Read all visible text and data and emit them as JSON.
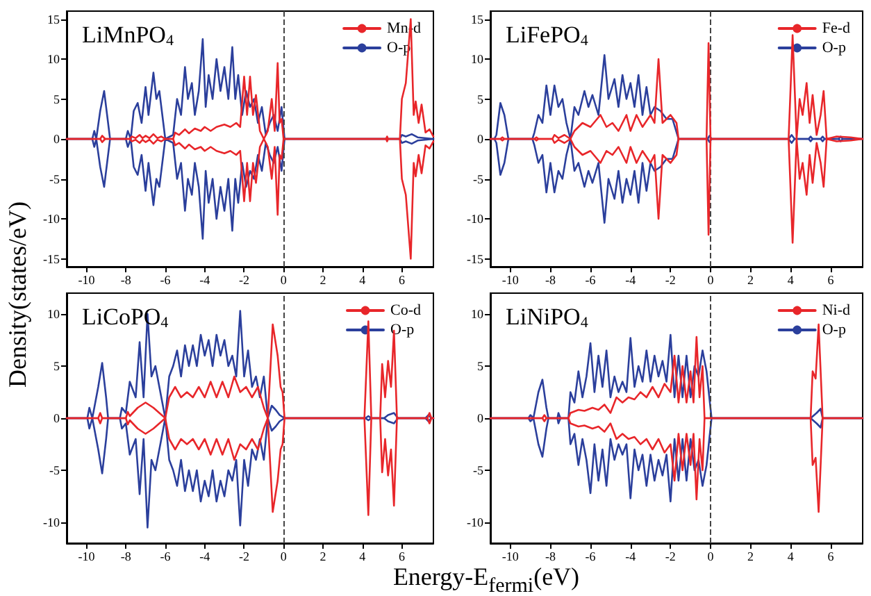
{
  "chart_data": [
    {
      "type": "line",
      "title": "LiMnPO$_{4}$",
      "ylabel": "Density(states/eV)",
      "xlim": [
        -11,
        7.6
      ],
      "xticks": [
        -10,
        -8,
        -6,
        -4,
        -2,
        0,
        2,
        4,
        6
      ],
      "ylim": [
        -16,
        16
      ],
      "yticks": [
        -15,
        -10,
        -5,
        0,
        5,
        10,
        15
      ],
      "grid": false,
      "legend": "top right",
      "marker": "none",
      "line_style": "solid",
      "ref_lines": [
        {
          "axis": "x",
          "value": 0,
          "line_style": "dashed"
        }
      ],
      "series": [
        {
          "name": "Mn-d",
          "color": "#e8262a",
          "x": [
            -11,
            -9.3,
            -9.2,
            -9.05,
            -7.8,
            -7.7,
            -7.5,
            -7.3,
            -7.15,
            -7.0,
            -6.8,
            -6.6,
            -6.4,
            -6.2,
            -6.0,
            -5.6,
            -5.5,
            -5.3,
            -5.0,
            -4.8,
            -4.5,
            -4.2,
            -4.0,
            -3.7,
            -3.4,
            -3.0,
            -2.7,
            -2.4,
            -2.2,
            -2.0,
            -1.85,
            -1.7,
            -1.55,
            -1.4,
            -1.2,
            -1.0,
            -0.8,
            -0.6,
            -0.45,
            -0.3,
            -0.2,
            -0.1,
            0,
            5.2,
            5.25,
            5.3,
            5.9,
            6.0,
            6.2,
            6.45,
            6.6,
            6.7,
            6.85,
            7.0,
            7.2,
            7.4,
            7.6
          ],
          "values": [
            0,
            0,
            0.4,
            0,
            0,
            0.3,
            0.1,
            0.5,
            0.1,
            0.4,
            0.1,
            0.6,
            0.1,
            0.3,
            0,
            0,
            0.8,
            0.5,
            1.2,
            0.7,
            1.3,
            1,
            1.5,
            1,
            1.5,
            1.8,
            1.5,
            2,
            1.5,
            7.8,
            3,
            7.8,
            3,
            5.5,
            1,
            0,
            1,
            5,
            1,
            9.5,
            2,
            2.5,
            0,
            0,
            0.3,
            0,
            0,
            5,
            7,
            15,
            3,
            4.7,
            2,
            4.3,
            0.8,
            1.2,
            0.3
          ]
        },
        {
          "color": "#e8262a",
          "x": [
            -11,
            -9.3,
            -9.2,
            -9.05,
            -7.8,
            -7.7,
            -7.5,
            -7.3,
            -7.15,
            -7.0,
            -6.8,
            -6.6,
            -6.4,
            -6.2,
            -6.0,
            -5.6,
            -5.5,
            -5.3,
            -5.0,
            -4.8,
            -4.5,
            -4.2,
            -4.0,
            -3.7,
            -3.4,
            -3.0,
            -2.7,
            -2.4,
            -2.2,
            -2.0,
            -1.85,
            -1.7,
            -1.55,
            -1.4,
            -1.2,
            -1.0,
            -0.8,
            -0.6,
            -0.45,
            -0.3,
            -0.2,
            -0.1,
            0,
            5.2,
            5.25,
            5.3,
            5.9,
            6.0,
            6.2,
            6.45,
            6.6,
            6.7,
            6.85,
            7.0,
            7.2,
            7.4,
            7.6
          ],
          "values": [
            0,
            0,
            -0.4,
            0,
            0,
            -0.3,
            -0.1,
            -0.5,
            -0.1,
            -0.4,
            -0.1,
            -0.6,
            -0.1,
            -0.3,
            0,
            0,
            -0.8,
            -0.5,
            -1.2,
            -0.7,
            -1.3,
            -1,
            -1.5,
            -1,
            -1.5,
            -1.8,
            -1.5,
            -2,
            -1.5,
            -7.8,
            -3,
            -7.8,
            -3,
            -5.5,
            -1,
            0,
            -1,
            -5,
            -1,
            -9.5,
            -2,
            -2.5,
            0,
            0,
            -0.3,
            0,
            0,
            -5,
            -7,
            -15,
            -3,
            -4.7,
            -2,
            -4.3,
            -0.8,
            -1.2,
            -0.3
          ]
        },
        {
          "name": "O-p",
          "color": "#2b3f9c",
          "x": [
            -11,
            -9.7,
            -9.6,
            -9.5,
            -9.3,
            -9.1,
            -8.95,
            -8.8,
            -8.0,
            -7.9,
            -7.75,
            -7.6,
            -7.4,
            -7.2,
            -7.0,
            -6.85,
            -6.6,
            -6.45,
            -6.3,
            -6.1,
            -6.0,
            -5.6,
            -5.4,
            -5.2,
            -5.0,
            -4.85,
            -4.65,
            -4.5,
            -4.3,
            -4.1,
            -3.95,
            -3.8,
            -3.6,
            -3.4,
            -3.2,
            -3.0,
            -2.8,
            -2.6,
            -2.45,
            -2.3,
            -2.1,
            -1.9,
            -1.7,
            -1.5,
            -1.3,
            -1.1,
            -0.9,
            -0.7,
            -0.5,
            -0.3,
            -0.1,
            0.05,
            5.9,
            6.0,
            6.2,
            6.5,
            6.8,
            7.6
          ],
          "values": [
            0,
            0,
            1,
            0,
            3.5,
            6,
            3,
            0,
            0,
            1,
            0,
            3.5,
            4.5,
            2,
            6.5,
            3,
            8.3,
            5,
            6,
            2,
            0,
            0.5,
            5,
            3,
            9,
            5,
            7,
            3,
            6,
            12.5,
            4,
            8,
            5,
            10,
            6,
            9,
            5,
            11.5,
            5,
            8,
            3,
            6,
            4,
            5,
            2,
            4,
            0.5,
            2,
            3,
            1,
            4,
            0,
            0,
            0.5,
            0.3,
            0.6,
            0.2,
            0
          ]
        },
        {
          "color": "#2b3f9c",
          "x": [
            -11,
            -9.7,
            -9.6,
            -9.5,
            -9.3,
            -9.1,
            -8.95,
            -8.8,
            -8.0,
            -7.9,
            -7.75,
            -7.6,
            -7.4,
            -7.2,
            -7.0,
            -6.85,
            -6.6,
            -6.45,
            -6.3,
            -6.1,
            -6.0,
            -5.6,
            -5.4,
            -5.2,
            -5.0,
            -4.85,
            -4.65,
            -4.5,
            -4.3,
            -4.1,
            -3.95,
            -3.8,
            -3.6,
            -3.4,
            -3.2,
            -3.0,
            -2.8,
            -2.6,
            -2.45,
            -2.3,
            -2.1,
            -1.9,
            -1.7,
            -1.5,
            -1.3,
            -1.1,
            -0.9,
            -0.7,
            -0.5,
            -0.3,
            -0.1,
            0.05,
            5.9,
            6.0,
            6.2,
            6.5,
            6.8,
            7.6
          ],
          "values": [
            0,
            0,
            -1,
            0,
            -3.5,
            -6,
            -3,
            0,
            0,
            -1,
            0,
            -3.5,
            -4.5,
            -2,
            -6.5,
            -3,
            -8.3,
            -5,
            -6,
            -2,
            0,
            -0.5,
            -5,
            -3,
            -9,
            -5,
            -7,
            -3,
            -6,
            -12.5,
            -4,
            -8,
            -5,
            -10,
            -6,
            -9,
            -5,
            -11.5,
            -5,
            -8,
            -3,
            -6,
            -4,
            -5,
            -2,
            -4,
            -0.5,
            -2,
            -3,
            -1,
            -4,
            0,
            0,
            -0.5,
            -0.3,
            -0.6,
            -0.2,
            0
          ]
        }
      ]
    },
    {
      "type": "line",
      "title": "LiFePO$_{4}$",
      "xlim": [
        -11,
        7.6
      ],
      "xticks": [
        -10,
        -8,
        -6,
        -4,
        -2,
        0,
        2,
        4,
        6
      ],
      "ylim": [
        -16,
        16
      ],
      "yticks": [
        -15,
        -10,
        -5,
        0,
        5,
        10,
        15
      ],
      "grid": false,
      "legend": "top right",
      "marker": "none",
      "line_style": "solid",
      "ref_lines": [
        {
          "axis": "x",
          "value": 0,
          "line_style": "dashed"
        }
      ],
      "series": [
        {
          "name": "Fe-d",
          "color": "#e8262a",
          "x": [
            -11,
            -10.5,
            -10.4,
            -10.3,
            -8.8,
            -8.7,
            -8.6,
            -7.9,
            -7.8,
            -7.6,
            -7.3,
            -7.0,
            -6.8,
            -6.4,
            -6.0,
            -5.5,
            -5.2,
            -4.9,
            -4.6,
            -4.2,
            -4.0,
            -3.7,
            -3.4,
            -3.0,
            -2.8,
            -2.6,
            -2.4,
            -2.0,
            -1.7,
            -1.6,
            -0.2,
            -0.1,
            0.0,
            3.9,
            4.1,
            4.3,
            4.45,
            4.6,
            4.8,
            4.95,
            5.1,
            5.3,
            5.5,
            5.65,
            5.8,
            6.3,
            7.0,
            7.6
          ],
          "values": [
            0,
            0,
            0.2,
            0,
            0,
            0.2,
            0,
            0,
            0.5,
            0.1,
            0.5,
            0,
            1,
            2,
            1.5,
            3,
            1.5,
            2,
            1,
            3,
            1,
            3,
            1.5,
            3,
            2,
            10,
            2,
            3,
            2,
            0,
            0,
            12,
            0,
            0,
            13,
            0,
            5,
            3,
            7,
            2,
            5.5,
            0.5,
            3,
            6,
            0,
            0.3,
            0.2,
            0
          ]
        },
        {
          "color": "#e8262a",
          "x": [
            -11,
            -10.5,
            -10.4,
            -10.3,
            -8.8,
            -8.7,
            -8.6,
            -7.9,
            -7.8,
            -7.6,
            -7.3,
            -7.0,
            -6.8,
            -6.4,
            -6.0,
            -5.5,
            -5.2,
            -4.9,
            -4.6,
            -4.2,
            -4.0,
            -3.7,
            -3.4,
            -3.0,
            -2.8,
            -2.6,
            -2.4,
            -2.0,
            -1.7,
            -1.6,
            -0.2,
            -0.1,
            0.0,
            3.9,
            4.1,
            4.3,
            4.45,
            4.6,
            4.8,
            4.95,
            5.1,
            5.3,
            5.5,
            5.65,
            5.8,
            6.3,
            7.0,
            7.6
          ],
          "values": [
            0,
            0,
            -0.2,
            0,
            0,
            -0.2,
            0,
            0,
            -0.5,
            -0.1,
            -0.5,
            0,
            -1,
            -2,
            -1.5,
            -3,
            -1.5,
            -2,
            -1,
            -3,
            -1,
            -3,
            -1.5,
            -3,
            -2,
            -10,
            -2,
            -3,
            -2,
            0,
            0,
            -12,
            0,
            0,
            -13,
            0,
            -5,
            -3,
            -7,
            -2,
            -5.5,
            -0.5,
            -3,
            -6,
            0,
            -0.3,
            -0.2,
            0
          ]
        },
        {
          "name": "O-p",
          "color": "#2b3f9c",
          "x": [
            -11,
            -10.8,
            -10.7,
            -10.5,
            -10.3,
            -10.1,
            -8.9,
            -8.8,
            -8.6,
            -8.4,
            -8.2,
            -8.0,
            -7.8,
            -7.6,
            -7.4,
            -7.2,
            -7.0,
            -6.8,
            -6.6,
            -6.3,
            -6.1,
            -5.9,
            -5.6,
            -5.3,
            -5.1,
            -4.8,
            -4.6,
            -4.4,
            -4.2,
            -4.0,
            -3.8,
            -3.6,
            -3.4,
            -3.2,
            -3.0,
            -2.8,
            -2.5,
            -2.2,
            -1.9,
            -1.6,
            -0.15,
            -0.05,
            0.05,
            3.9,
            4.05,
            4.2,
            4.9,
            5.0,
            5.1,
            5.5,
            5.6,
            5.7,
            6.4,
            6.5,
            6.6,
            7.6
          ],
          "values": [
            0,
            0,
            0.5,
            4.5,
            3,
            0,
            0,
            0.8,
            3,
            2,
            6.7,
            3,
            6.7,
            4,
            5,
            2,
            0,
            4,
            3,
            6,
            4,
            5.5,
            3,
            10.5,
            5,
            7.5,
            4,
            8,
            5,
            7,
            4,
            8,
            3,
            6.5,
            3,
            4,
            3.5,
            2.5,
            2.5,
            0,
            0,
            0.4,
            0,
            0,
            0.5,
            0,
            0,
            0.3,
            0,
            0,
            0.3,
            0,
            0,
            0.3,
            0,
            0
          ]
        },
        {
          "color": "#2b3f9c",
          "x": [
            -11,
            -10.8,
            -10.7,
            -10.5,
            -10.3,
            -10.1,
            -8.9,
            -8.8,
            -8.6,
            -8.4,
            -8.2,
            -8.0,
            -7.8,
            -7.6,
            -7.4,
            -7.2,
            -7.0,
            -6.8,
            -6.6,
            -6.3,
            -6.1,
            -5.9,
            -5.6,
            -5.3,
            -5.1,
            -4.8,
            -4.6,
            -4.4,
            -4.2,
            -4.0,
            -3.8,
            -3.6,
            -3.4,
            -3.2,
            -3.0,
            -2.8,
            -2.5,
            -2.2,
            -1.9,
            -1.6,
            -0.15,
            -0.05,
            0.05,
            3.9,
            4.05,
            4.2,
            4.9,
            5.0,
            5.1,
            5.5,
            5.6,
            5.7,
            6.4,
            6.5,
            6.6,
            7.6
          ],
          "values": [
            0,
            0,
            -0.5,
            -4.5,
            -3,
            0,
            0,
            -0.8,
            -3,
            -2,
            -6.7,
            -3,
            -6.7,
            -4,
            -5,
            -2,
            0,
            -4,
            -3,
            -6,
            -4,
            -5.5,
            -3,
            -10.5,
            -5,
            -7.5,
            -4,
            -8,
            -5,
            -7,
            -4,
            -8,
            -3,
            -6.5,
            -3,
            -4,
            -3.5,
            -2.5,
            -2.5,
            0,
            0,
            -0.4,
            0,
            0,
            -0.5,
            0,
            0,
            -0.3,
            0,
            0,
            -0.3,
            0,
            0,
            -0.3,
            0,
            0
          ]
        }
      ]
    },
    {
      "type": "line",
      "title": "LiCoPO$_{4}$",
      "xlabel": "Energy-E$_{fermi}$(eV)",
      "xlim": [
        -11,
        7.6
      ],
      "xticks": [
        -10,
        -8,
        -6,
        -4,
        -2,
        0,
        2,
        4,
        6
      ],
      "ylim": [
        -12,
        12
      ],
      "yticks": [
        -10,
        -5,
        0,
        5,
        10
      ],
      "grid": false,
      "legend": "top right",
      "marker": "none",
      "line_style": "solid",
      "ref_lines": [
        {
          "axis": "x",
          "value": 0,
          "line_style": "dashed"
        }
      ],
      "series": [
        {
          "name": "Co-d",
          "color": "#e8262a",
          "x": [
            -11,
            -9.4,
            -9.3,
            -9.2,
            -8.0,
            -7.9,
            -7.8,
            -7.4,
            -7.0,
            -6.6,
            -6.3,
            -6.0,
            -5.8,
            -5.5,
            -5.2,
            -4.9,
            -4.6,
            -4.3,
            -4.0,
            -3.7,
            -3.4,
            -3.1,
            -2.8,
            -2.5,
            -2.2,
            -1.9,
            -1.6,
            -1.3,
            -1.0,
            -0.8,
            -0.55,
            -0.3,
            -0.15,
            -0.05,
            0.05,
            4.1,
            4.3,
            4.45,
            4.9,
            5.0,
            5.15,
            5.3,
            5.45,
            5.6,
            5.75,
            7.3,
            7.4,
            7.5,
            7.6
          ],
          "values": [
            0,
            0,
            0.5,
            0,
            0,
            0.6,
            0.2,
            1,
            1.5,
            1,
            0.5,
            0,
            2,
            3,
            2,
            2.5,
            2,
            3,
            2,
            3.5,
            2,
            3.5,
            2,
            4,
            2.5,
            3,
            2,
            3,
            1,
            0,
            9,
            6,
            3,
            2.5,
            0,
            0,
            9.3,
            0,
            0,
            5.2,
            2,
            5.5,
            3,
            8.4,
            0,
            0,
            0.5,
            0,
            0
          ]
        },
        {
          "color": "#e8262a",
          "x": [
            -11,
            -9.4,
            -9.3,
            -9.2,
            -8.0,
            -7.9,
            -7.8,
            -7.4,
            -7.0,
            -6.6,
            -6.3,
            -6.0,
            -5.8,
            -5.5,
            -5.2,
            -4.9,
            -4.6,
            -4.3,
            -4.0,
            -3.7,
            -3.4,
            -3.1,
            -2.8,
            -2.5,
            -2.2,
            -1.9,
            -1.6,
            -1.3,
            -1.0,
            -0.8,
            -0.55,
            -0.3,
            -0.15,
            -0.05,
            0.05,
            4.1,
            4.3,
            4.45,
            4.9,
            5.0,
            5.15,
            5.3,
            5.45,
            5.6,
            5.75,
            7.3,
            7.4,
            7.5,
            7.6
          ],
          "values": [
            0,
            0,
            -0.5,
            0,
            0,
            -0.6,
            -0.2,
            -1,
            -1.5,
            -1,
            -0.5,
            0,
            -2,
            -3,
            -2,
            -2.5,
            -2,
            -3,
            -2,
            -3.5,
            -2,
            -3.5,
            -2,
            -4,
            -2.5,
            -3,
            -2,
            -3,
            -1,
            0,
            -9,
            -6,
            -3,
            -2.5,
            0,
            0,
            -9.3,
            0,
            0,
            -5.2,
            -2,
            -5.5,
            -3,
            -8.4,
            0,
            0,
            -0.5,
            0,
            0
          ]
        },
        {
          "name": "O-p",
          "color": "#2b3f9c",
          "x": [
            -11,
            -9.95,
            -9.85,
            -9.7,
            -9.4,
            -9.2,
            -9.0,
            -8.9,
            -8.3,
            -8.2,
            -8.0,
            -7.8,
            -7.5,
            -7.3,
            -7.1,
            -6.9,
            -6.7,
            -6.5,
            -6.2,
            -6.0,
            -5.8,
            -5.6,
            -5.4,
            -5.2,
            -5.0,
            -4.8,
            -4.6,
            -4.4,
            -4.2,
            -4.0,
            -3.8,
            -3.6,
            -3.4,
            -3.2,
            -3.0,
            -2.8,
            -2.6,
            -2.4,
            -2.2,
            -2.0,
            -1.8,
            -1.6,
            -1.4,
            -1.2,
            -1.0,
            -0.8,
            -0.6,
            -0.4,
            -0.2,
            0.05,
            4.15,
            4.3,
            4.45,
            5.1,
            5.3,
            5.6,
            5.8,
            7.2,
            7.35,
            7.5,
            7.6
          ],
          "values": [
            0,
            0,
            1,
            0,
            3,
            5.3,
            2,
            0,
            0,
            1,
            0.5,
            3.5,
            2,
            7.3,
            2,
            10,
            4,
            5,
            2,
            0,
            4,
            5,
            6.5,
            4,
            7,
            5,
            7,
            5,
            8,
            6,
            7.5,
            5,
            8,
            6,
            7.5,
            5,
            6,
            4,
            10.3,
            4,
            6.5,
            3,
            4,
            2,
            4,
            0,
            1.2,
            0.8,
            0.3,
            0,
            0,
            0.2,
            0,
            0,
            0.3,
            0.5,
            0,
            0,
            0.3,
            0,
            0
          ]
        },
        {
          "color": "#2b3f9c",
          "x": [
            -11,
            -9.95,
            -9.85,
            -9.7,
            -9.4,
            -9.2,
            -9.0,
            -8.9,
            -8.3,
            -8.2,
            -8.0,
            -7.8,
            -7.5,
            -7.3,
            -7.1,
            -6.9,
            -6.7,
            -6.5,
            -6.2,
            -6.0,
            -5.8,
            -5.6,
            -5.4,
            -5.2,
            -5.0,
            -4.8,
            -4.6,
            -4.4,
            -4.2,
            -4.0,
            -3.8,
            -3.6,
            -3.4,
            -3.2,
            -3.0,
            -2.8,
            -2.6,
            -2.4,
            -2.2,
            -2.0,
            -1.8,
            -1.6,
            -1.4,
            -1.2,
            -1.0,
            -0.8,
            -0.6,
            -0.4,
            -0.2,
            0.05,
            4.15,
            4.3,
            4.45,
            5.1,
            5.3,
            5.6,
            5.8,
            7.2,
            7.35,
            7.5,
            7.6
          ],
          "values": [
            0,
            0,
            -1,
            0,
            -3,
            -5.3,
            -2,
            0,
            0,
            -1,
            -0.5,
            -3.5,
            -2,
            -7.3,
            -2,
            -10.5,
            -4,
            -5,
            -2,
            0,
            -4,
            -5,
            -6.5,
            -4,
            -7,
            -5,
            -7,
            -5,
            -8,
            -6,
            -7.5,
            -5,
            -8,
            -6,
            -7.5,
            -5,
            -6,
            -4,
            -10.3,
            -4,
            -6.5,
            -3,
            -4,
            -2,
            -4,
            0,
            -1.2,
            -0.8,
            -0.3,
            0,
            0,
            -0.2,
            0,
            0,
            -0.3,
            -0.5,
            0,
            0,
            -0.3,
            0,
            0
          ]
        }
      ]
    },
    {
      "type": "line",
      "title": "LiNiPO$_{4}$",
      "xlim": [
        -11,
        7.6
      ],
      "xticks": [
        -10,
        -8,
        -6,
        -4,
        -2,
        0,
        2,
        4,
        6
      ],
      "ylim": [
        -12,
        12
      ],
      "yticks": [
        -10,
        -5,
        0,
        5,
        10
      ],
      "grid": false,
      "legend": "top right",
      "marker": "none",
      "line_style": "solid",
      "ref_lines": [
        {
          "axis": "x",
          "value": 0,
          "line_style": "dashed"
        }
      ],
      "series": [
        {
          "name": "Ni-d",
          "color": "#e8262a",
          "x": [
            -11,
            -8.4,
            -8.3,
            -8.2,
            -7.1,
            -7.0,
            -6.6,
            -6.3,
            -5.9,
            -5.6,
            -5.3,
            -5.0,
            -4.7,
            -4.4,
            -4.1,
            -3.8,
            -3.5,
            -3.2,
            -2.9,
            -2.6,
            -2.3,
            -2.0,
            -1.8,
            -1.6,
            -1.4,
            -1.2,
            -1.0,
            -0.85,
            -0.7,
            -0.55,
            -0.4,
            -0.3,
            5.0,
            5.1,
            5.25,
            5.4,
            5.6,
            7.6
          ],
          "values": [
            0,
            0,
            0.3,
            0,
            0,
            0.5,
            0.8,
            0.7,
            1,
            0.8,
            1.3,
            0.5,
            2,
            1.5,
            2,
            1.8,
            2.5,
            2,
            3,
            2,
            3.3,
            2.5,
            6,
            1.5,
            5,
            1.5,
            4.5,
            1.5,
            7.8,
            2,
            5,
            0,
            0,
            4.5,
            3.8,
            9,
            0,
            0
          ]
        },
        {
          "color": "#e8262a",
          "x": [
            -11,
            -8.4,
            -8.3,
            -8.2,
            -7.1,
            -7.0,
            -6.6,
            -6.3,
            -5.9,
            -5.6,
            -5.3,
            -5.0,
            -4.7,
            -4.4,
            -4.1,
            -3.8,
            -3.5,
            -3.2,
            -2.9,
            -2.6,
            -2.3,
            -2.0,
            -1.8,
            -1.6,
            -1.4,
            -1.2,
            -1.0,
            -0.85,
            -0.7,
            -0.55,
            -0.4,
            -0.3,
            5.0,
            5.1,
            5.25,
            5.4,
            5.6,
            7.6
          ],
          "values": [
            0,
            0,
            -0.3,
            0,
            0,
            -0.5,
            -0.8,
            -0.7,
            -1,
            -0.8,
            -1.3,
            -0.5,
            -2,
            -1.5,
            -2,
            -1.8,
            -2.5,
            -2,
            -3,
            -2,
            -3.3,
            -2.5,
            -6,
            -1.5,
            -5,
            -1.5,
            -4.5,
            -1.5,
            -7.8,
            -2,
            -5,
            0,
            0,
            -4.5,
            -3.8,
            -9,
            0,
            0
          ]
        },
        {
          "name": "O-p",
          "color": "#2b3f9c",
          "x": [
            -11,
            -9.1,
            -9.0,
            -8.85,
            -8.6,
            -8.4,
            -8.2,
            -8.1,
            -7.65,
            -7.6,
            -7.5,
            -7.1,
            -7.0,
            -6.8,
            -6.6,
            -6.4,
            -6.2,
            -6.0,
            -5.8,
            -5.6,
            -5.4,
            -5.2,
            -5.0,
            -4.8,
            -4.6,
            -4.4,
            -4.2,
            -4.0,
            -3.8,
            -3.6,
            -3.4,
            -3.2,
            -3.0,
            -2.8,
            -2.6,
            -2.4,
            -2.2,
            -2.0,
            -1.8,
            -1.6,
            -1.4,
            -1.2,
            -1.0,
            -0.8,
            -0.6,
            -0.4,
            -0.2,
            0.05,
            5.0,
            5.3,
            5.5,
            5.6,
            7.6
          ],
          "values": [
            0,
            0,
            0.3,
            0,
            2.5,
            3.7,
            1,
            0,
            0,
            0.5,
            0,
            0,
            2.5,
            1.5,
            4.5,
            2,
            4,
            7.2,
            2.5,
            6,
            3,
            6.5,
            2,
            4,
            2.5,
            3.5,
            2.5,
            7.7,
            3,
            5,
            3.5,
            6.5,
            3.5,
            6,
            4,
            5.5,
            3.5,
            8,
            2,
            6,
            2,
            6,
            2,
            5,
            4,
            6.5,
            4.5,
            0,
            0,
            0.5,
            0.9,
            0,
            0
          ]
        },
        {
          "color": "#2b3f9c",
          "x": [
            -11,
            -9.1,
            -9.0,
            -8.85,
            -8.6,
            -8.4,
            -8.2,
            -8.1,
            -7.65,
            -7.6,
            -7.5,
            -7.1,
            -7.0,
            -6.8,
            -6.6,
            -6.4,
            -6.2,
            -6.0,
            -5.8,
            -5.6,
            -5.4,
            -5.2,
            -5.0,
            -4.8,
            -4.6,
            -4.4,
            -4.2,
            -4.0,
            -3.8,
            -3.6,
            -3.4,
            -3.2,
            -3.0,
            -2.8,
            -2.6,
            -2.4,
            -2.2,
            -2.0,
            -1.8,
            -1.6,
            -1.4,
            -1.2,
            -1.0,
            -0.8,
            -0.6,
            -0.4,
            -0.2,
            0.05,
            5.0,
            5.3,
            5.5,
            5.6,
            7.6
          ],
          "values": [
            0,
            0,
            -0.3,
            0,
            -2.5,
            -3.7,
            -1,
            0,
            0,
            -0.5,
            0,
            0,
            -2.5,
            -1.5,
            -4.5,
            -2,
            -4,
            -7.2,
            -2.5,
            -6,
            -3,
            -6.5,
            -2,
            -4,
            -2.5,
            -3.5,
            -2.5,
            -7.7,
            -3,
            -5,
            -3.5,
            -6.5,
            -3.5,
            -6,
            -4,
            -5.5,
            -3.5,
            -8,
            -2,
            -6,
            -2,
            -6,
            -2,
            -5,
            -4,
            -6.5,
            -4.5,
            0,
            0,
            -0.5,
            -0.9,
            0,
            0
          ]
        }
      ]
    }
  ]
}
